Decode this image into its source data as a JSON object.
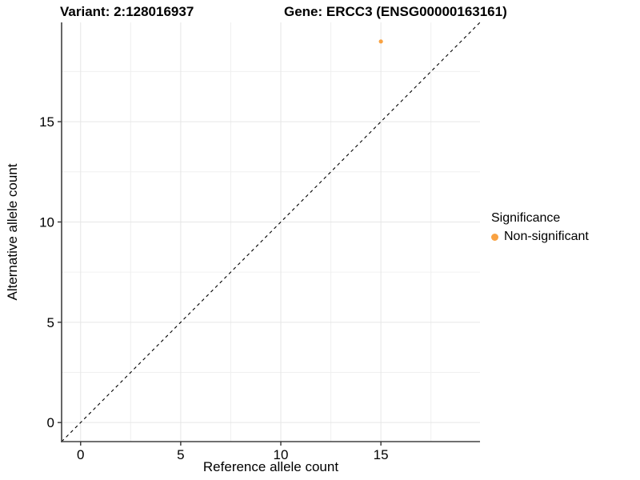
{
  "titles": {
    "variant": "Variant: 2:128016937",
    "gene": "Gene: ERCC3 (ENSG00000163161)"
  },
  "chart_data": {
    "type": "scatter",
    "xlabel": "Reference allele count",
    "ylabel": "Alternative allele count",
    "xlim": [
      -0.95,
      19.95
    ],
    "ylim": [
      -0.95,
      19.95
    ],
    "x_ticks": [
      0,
      5,
      10,
      15
    ],
    "y_ticks": [
      0,
      5,
      10,
      15
    ],
    "x_minor_ticks": [
      2.5,
      7.5,
      12.5,
      17.5
    ],
    "y_minor_ticks": [
      2.5,
      7.5,
      12.5,
      17.5
    ],
    "grid": "major+minor",
    "identity_line": {
      "style": "dashed",
      "from": -0.95,
      "to": 19.95,
      "color": "#000000"
    },
    "series": [
      {
        "name": "Non-significant",
        "color": "#F9A242",
        "points": [
          {
            "x": 15,
            "y": 19
          }
        ]
      }
    ],
    "legend": {
      "title": "Significance",
      "position": "right",
      "entries": [
        {
          "label": "Non-significant",
          "color": "#F9A242"
        }
      ]
    }
  },
  "colors": {
    "background": "#FFFFFF",
    "grid_major": "#E6E6E6",
    "grid_minor": "#F0F0F0",
    "axis_line": "#404040",
    "tick_mark": "#333333",
    "text": "#000000",
    "point": "#F9A242"
  }
}
